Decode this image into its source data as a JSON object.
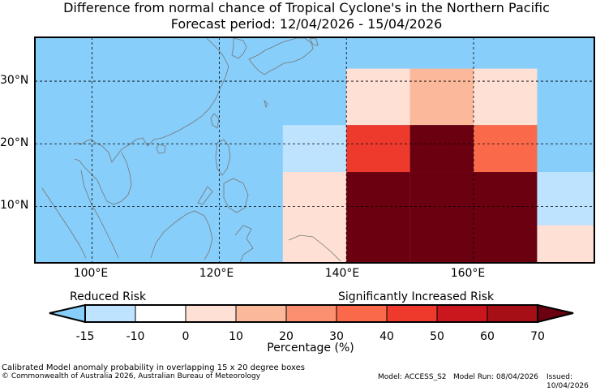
{
  "title": {
    "line1": "Difference from normal chance of Tropical Cyclone's in the Northern Pacific",
    "line2": "Forecast period: 12/04/2026 - 15/04/2026"
  },
  "map": {
    "lon_range": [
      91,
      179
    ],
    "lat_range": [
      1,
      37
    ],
    "y_ticks": [
      {
        "lat": 30,
        "label": "30°N"
      },
      {
        "lat": 20,
        "label": "20°N"
      },
      {
        "lat": 10,
        "label": "10°N"
      }
    ],
    "x_ticks": [
      {
        "lon": 100,
        "label": "100°E"
      },
      {
        "lon": 120,
        "label": "120°E"
      },
      {
        "lon": 140,
        "label": "140°E"
      },
      {
        "lon": 160,
        "label": "160°E"
      }
    ],
    "background_color": "#87cefa",
    "cells": [
      {
        "lon": [
          130,
          140
        ],
        "lat": [
          15.5,
          23
        ],
        "value": -12
      },
      {
        "lon": [
          130,
          140
        ],
        "lat": [
          1,
          15.5
        ],
        "value": 0
      },
      {
        "lon": [
          140,
          150
        ],
        "lat": [
          23,
          32
        ],
        "value": 0
      },
      {
        "lon": [
          150,
          160
        ],
        "lat": [
          23,
          32
        ],
        "value": 15
      },
      {
        "lon": [
          160,
          170
        ],
        "lat": [
          23,
          32
        ],
        "value": 0
      },
      {
        "lon": [
          140,
          150
        ],
        "lat": [
          15.5,
          23
        ],
        "value": 45
      },
      {
        "lon": [
          150,
          160
        ],
        "lat": [
          15.5,
          23
        ],
        "value": 75
      },
      {
        "lon": [
          160,
          170
        ],
        "lat": [
          15.5,
          23
        ],
        "value": 35
      },
      {
        "lon": [
          140,
          150
        ],
        "lat": [
          1,
          15.5
        ],
        "value": 75
      },
      {
        "lon": [
          150,
          160
        ],
        "lat": [
          1,
          15.5
        ],
        "value": 75
      },
      {
        "lon": [
          160,
          170
        ],
        "lat": [
          1,
          15.5
        ],
        "value": 75
      },
      {
        "lon": [
          170,
          179
        ],
        "lat": [
          7,
          15.5
        ],
        "value": -12
      },
      {
        "lon": [
          170,
          179
        ],
        "lat": [
          1,
          7
        ],
        "value": 0
      }
    ]
  },
  "colorbar": {
    "reduced_label": "Reduced Risk",
    "increased_label": "Significantly Increased Risk",
    "ticks": [
      "-15",
      "-10",
      "0",
      "10",
      "20",
      "30",
      "40",
      "50",
      "60",
      "70"
    ],
    "under_color": "#87cefa",
    "over_color": "#6b0010",
    "colors": [
      "#bde3ff",
      "#ffffff",
      "#ffe0d5",
      "#fcb89b",
      "#fc8f6f",
      "#fa6a4a",
      "#ee3a2c",
      "#c9171d",
      "#a50f15"
    ],
    "label": "Percentage (%)"
  },
  "footer": {
    "note": "Calibrated Model anomaly probability in overlapping 15 x 20 degree boxes",
    "copyright": "© Commonwealth of Australia 2026, Australian Bureau of Meteorology",
    "model": "Model: ACCESS_S2",
    "model_run": "Model Run: 08/04/2026",
    "issued": "Issued: 10/04/2026"
  }
}
